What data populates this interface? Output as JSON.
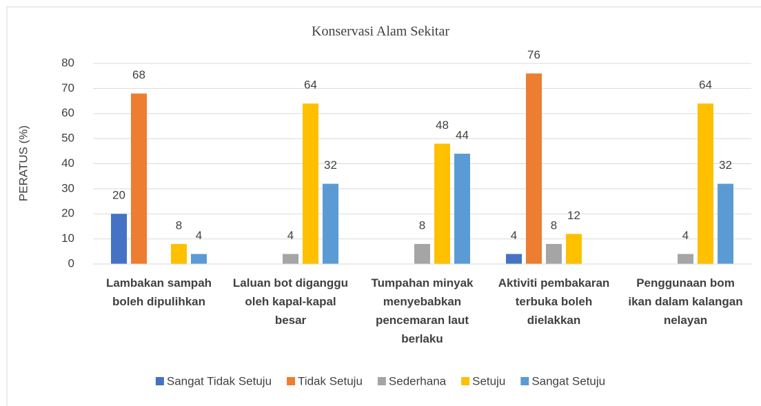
{
  "chart_data": {
    "type": "bar",
    "title": "Konservasi Alam Sekitar",
    "y_label": "PERATUS  (%)",
    "categories": [
      "Lambakan sampah boleh dipulihkan",
      "Laluan bot diganggu oleh kapal-kapal besar",
      "Tumpahan minyak menyebabkan pencemaran laut berlaku",
      "Aktiviti pembakaran terbuka boleh dielakkan",
      "Penggunaan bom ikan dalam kalangan nelayan"
    ],
    "series": [
      {
        "name": "Sangat Tidak Setuju",
        "color": "#4472c4",
        "values": [
          20,
          null,
          null,
          4,
          null
        ]
      },
      {
        "name": "Tidak Setuju",
        "color": "#ed7d31",
        "values": [
          68,
          null,
          null,
          76,
          null
        ]
      },
      {
        "name": "Sederhana",
        "color": "#a5a5a5",
        "values": [
          null,
          4,
          8,
          8,
          4
        ]
      },
      {
        "name": "Setuju",
        "color": "#ffc000",
        "values": [
          8,
          64,
          48,
          12,
          64
        ]
      },
      {
        "name": "Sangat Setuju",
        "color": "#5b9bd5",
        "values": [
          4,
          32,
          44,
          null,
          32
        ]
      }
    ],
    "ylim": [
      0,
      80
    ],
    "yticks": [
      0,
      10,
      20,
      30,
      40,
      50,
      60,
      70,
      80
    ],
    "grid": true,
    "legend": "bottom"
  }
}
